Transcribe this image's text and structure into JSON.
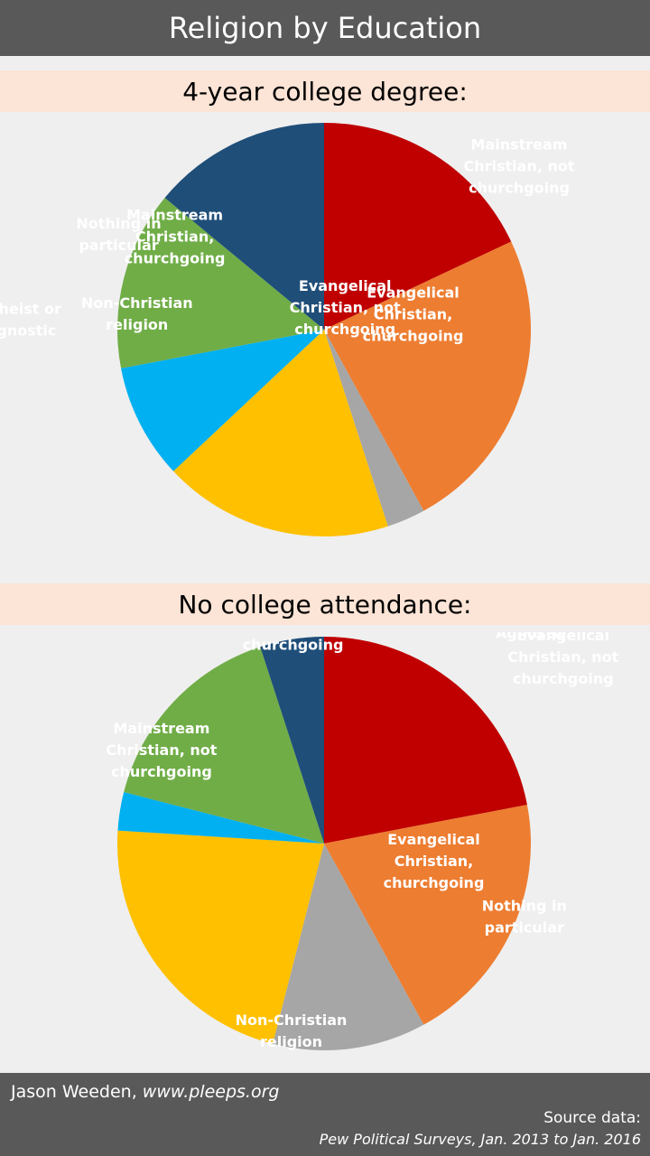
{
  "header": {
    "title": "Religion by Education"
  },
  "footer": {
    "author": "Jason Weeden,",
    "url": "www.pleeps.org",
    "source_label": "Source data:",
    "source_text": "Pew Political Surveys,  Jan. 2013 to Jan. 2016"
  },
  "chart_data": [
    {
      "type": "pie",
      "title": "4-year college degree:",
      "start_angle_deg": 0,
      "direction": "clockwise",
      "slices": [
        {
          "label": "Evangelical Christian, churchgoing",
          "lines": [
            "Evangelical",
            "Christian,",
            "churchgoing"
          ],
          "value": 18,
          "color": "#c00000"
        },
        {
          "label": "Mainstream Christian, churchgoing",
          "lines": [
            "Mainstream",
            "Christian,",
            "churchgoing"
          ],
          "value": 24,
          "color": "#ed7d31"
        },
        {
          "label": "Evangelical Christian, not churchgoing",
          "lines": [
            "Evangelical",
            "Christian, not",
            "churchgoing"
          ],
          "value": 3,
          "color": "#a6a6a6"
        },
        {
          "label": "Mainstream Christian, not churchgoing",
          "lines": [
            "Mainstream",
            "Christian, not",
            "churchgoing"
          ],
          "value": 18,
          "color": "#ffc000"
        },
        {
          "label": "Non-Christian religion",
          "lines": [
            "Non-Christian",
            "religion"
          ],
          "value": 9,
          "color": "#00b0f0"
        },
        {
          "label": "Nothing in particular",
          "lines": [
            "Nothing in",
            "particular"
          ],
          "value": 14,
          "color": "#70ad47"
        },
        {
          "label": "Atheist or Agnostic",
          "lines": [
            "Atheist or",
            "Agnostic"
          ],
          "value": 14,
          "color": "#1f4e79"
        }
      ]
    },
    {
      "type": "pie",
      "title": "No college attendance:",
      "start_angle_deg": 0,
      "direction": "clockwise",
      "slices": [
        {
          "label": "Evangelical Christian, churchgoing",
          "lines": [
            "Evangelical",
            "Christian,",
            "churchgoing"
          ],
          "value": 22,
          "color": "#c00000"
        },
        {
          "label": "Mainstream Christian, churchgoing",
          "lines": [
            "Mainstream",
            "Christian,",
            "churchgoing"
          ],
          "value": 20,
          "color": "#ed7d31"
        },
        {
          "label": "Evangelical Christian, not churchgoing",
          "lines": [
            "Evangelical",
            "Christian, not",
            "churchgoing"
          ],
          "value": 12,
          "color": "#a6a6a6"
        },
        {
          "label": "Mainstream Christian, not churchgoing",
          "lines": [
            "Mainstream",
            "Christian, not",
            "churchgoing"
          ],
          "value": 22,
          "color": "#ffc000"
        },
        {
          "label": "Non-Christian religion",
          "lines": [
            "Non-Christian",
            "religion"
          ],
          "value": 3,
          "color": "#00b0f0"
        },
        {
          "label": "Nothing in particular",
          "lines": [
            "Nothing in",
            "particular"
          ],
          "value": 16,
          "color": "#70ad47"
        },
        {
          "label": "Atheist or Agnostic",
          "lines": [
            "Atheist or",
            "Agnostic"
          ],
          "value": 5,
          "color": "#1f4e79"
        }
      ]
    }
  ]
}
